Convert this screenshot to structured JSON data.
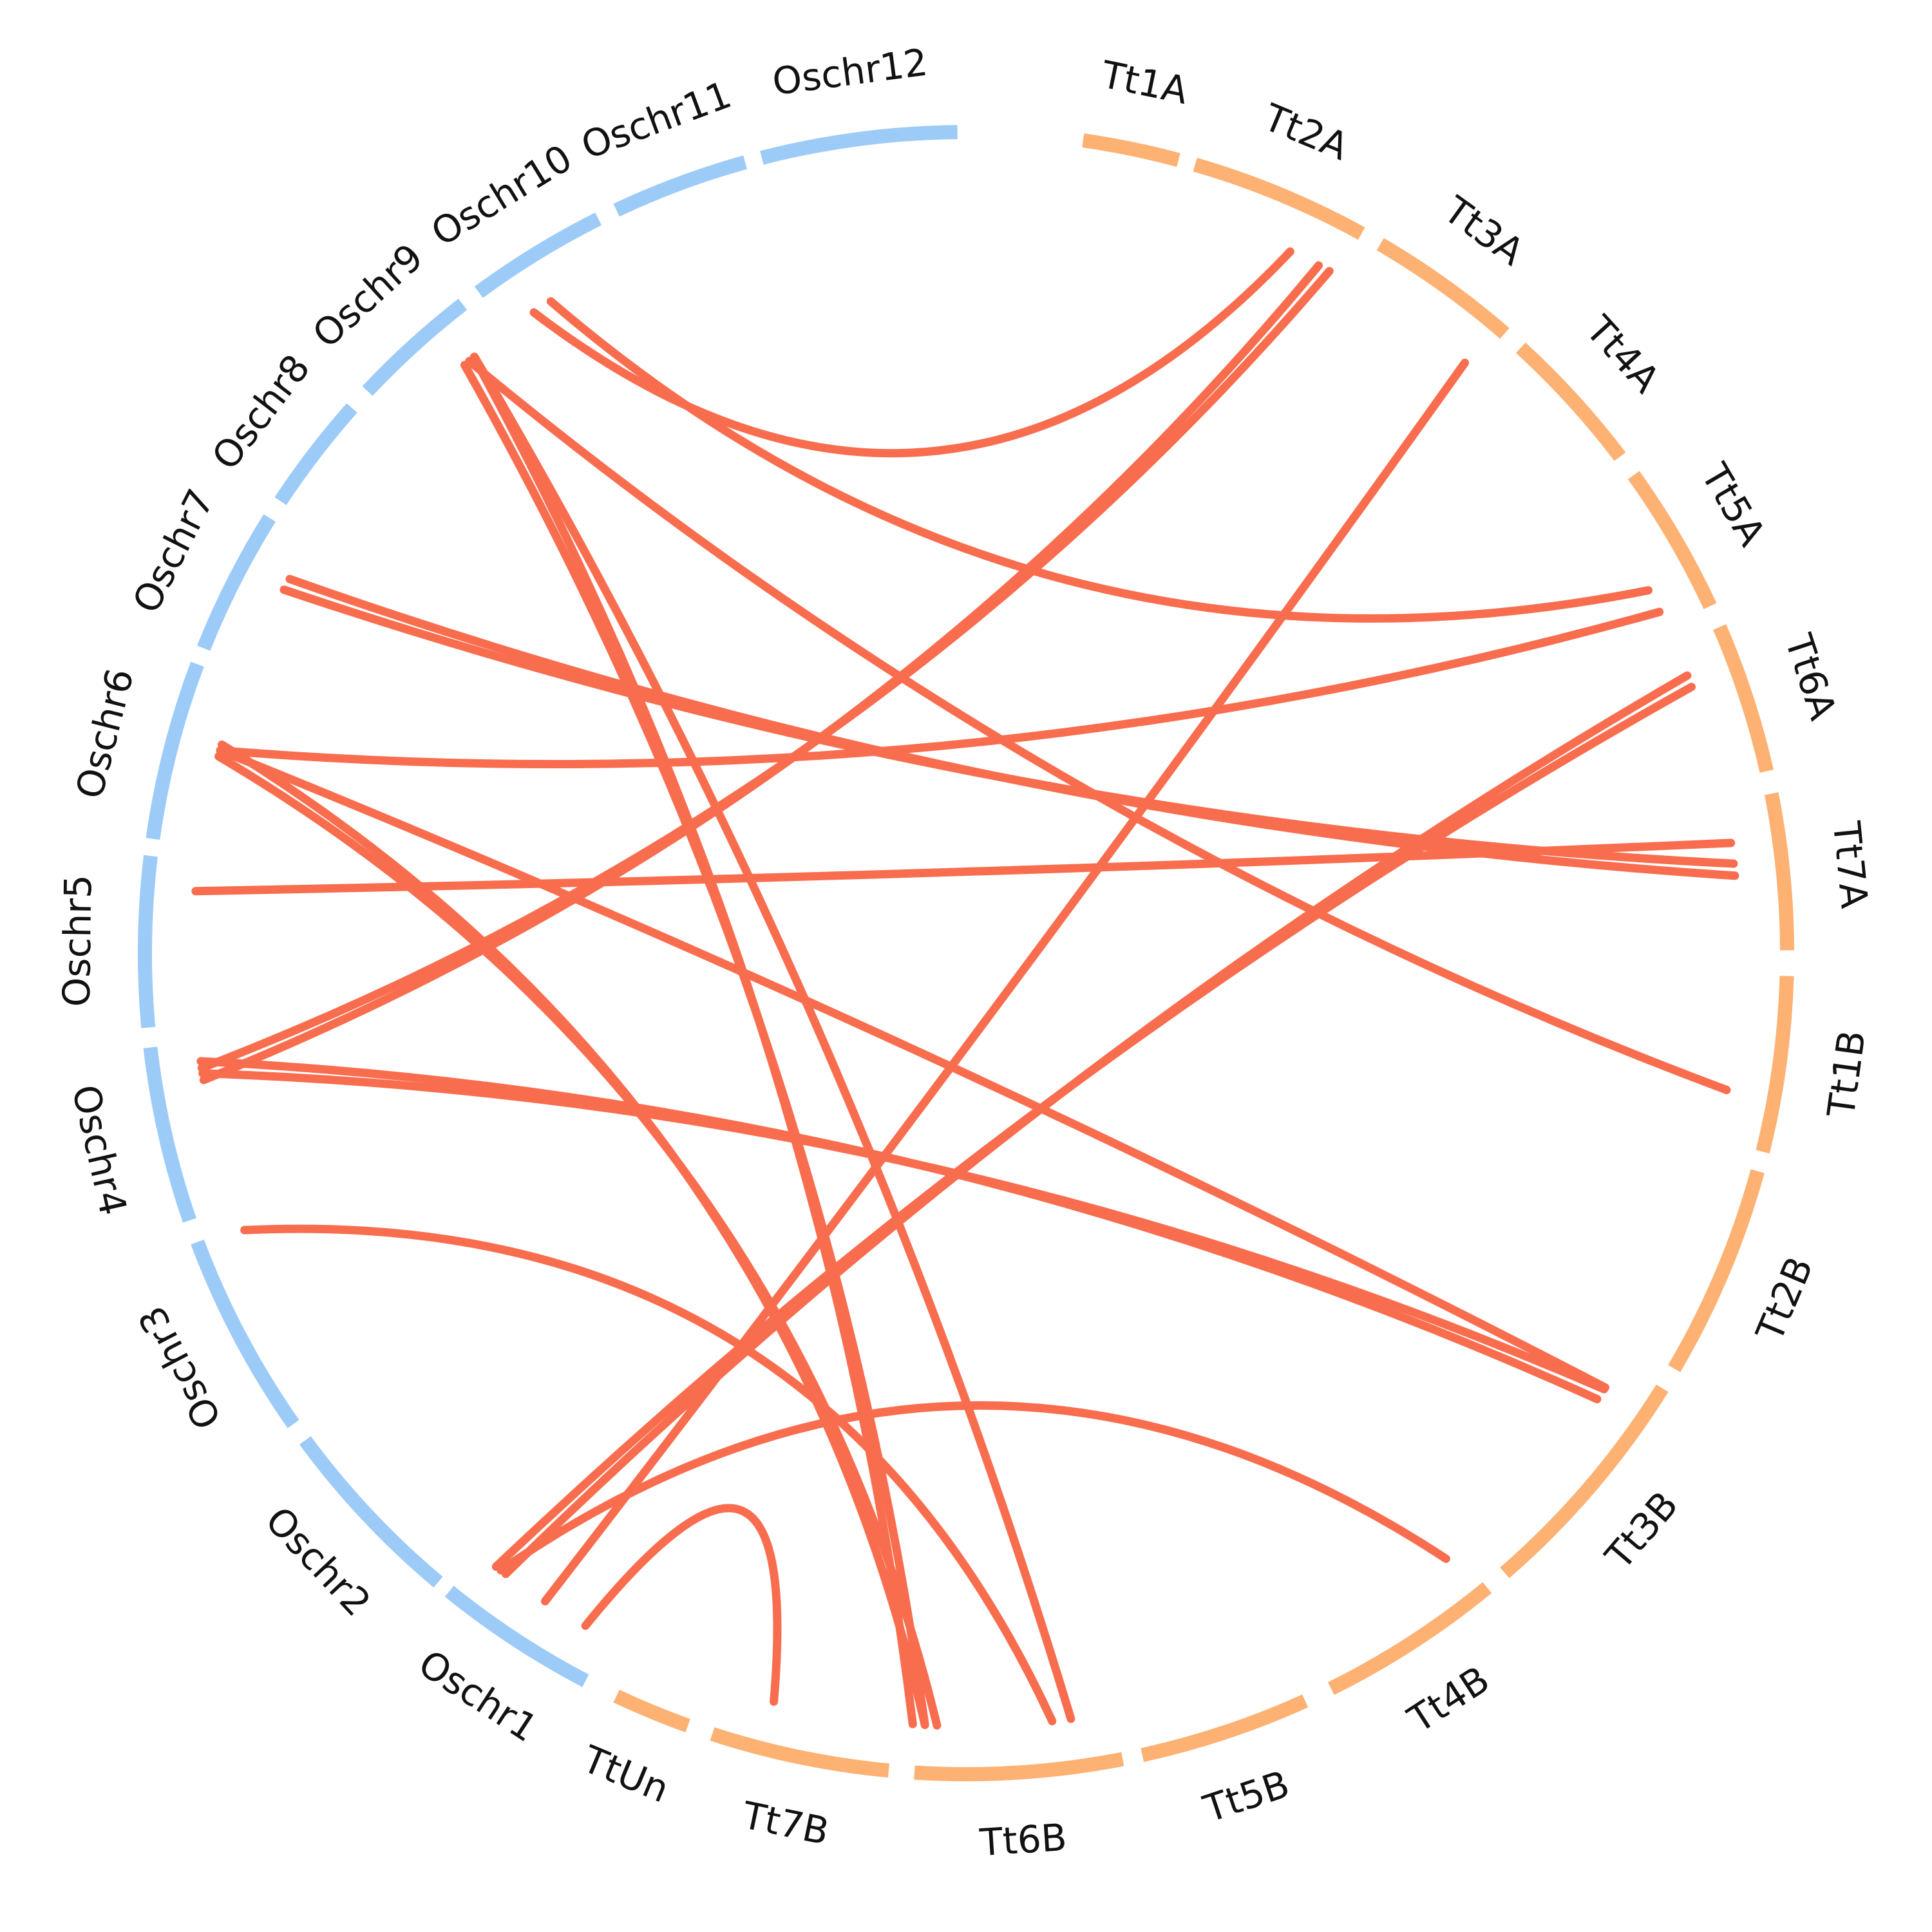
{
  "diagram": {
    "type": "circos-synteny",
    "colors": {
      "rice_segment": "#9DCBF7",
      "wheat_segment": "#FDB173",
      "link": "#F96D4F",
      "label": "#111111"
    },
    "segments": [
      {
        "id": "Tt1A",
        "label": "Tt1A",
        "group": "wheat"
      },
      {
        "id": "Tt2A",
        "label": "Tt2A",
        "group": "wheat"
      },
      {
        "id": "Tt3A",
        "label": "Tt3A",
        "group": "wheat"
      },
      {
        "id": "Tt4A",
        "label": "Tt4A",
        "group": "wheat"
      },
      {
        "id": "Tt5A",
        "label": "Tt5A",
        "group": "wheat"
      },
      {
        "id": "Tt6A",
        "label": "Tt6A",
        "group": "wheat"
      },
      {
        "id": "Tt7A",
        "label": "Tt7A",
        "group": "wheat"
      },
      {
        "id": "Tt1B",
        "label": "Tt1B",
        "group": "wheat"
      },
      {
        "id": "Tt2B",
        "label": "Tt2B",
        "group": "wheat"
      },
      {
        "id": "Tt3B",
        "label": "Tt3B",
        "group": "wheat"
      },
      {
        "id": "Tt4B",
        "label": "Tt4B",
        "group": "wheat"
      },
      {
        "id": "Tt5B",
        "label": "Tt5B",
        "group": "wheat"
      },
      {
        "id": "Tt6B",
        "label": "Tt6B",
        "group": "wheat"
      },
      {
        "id": "Tt7B",
        "label": "Tt7B",
        "group": "wheat"
      },
      {
        "id": "TtUn",
        "label": "TtUn",
        "group": "wheat"
      },
      {
        "id": "Oschr1",
        "label": "Oschr1",
        "group": "rice"
      },
      {
        "id": "Oschr2",
        "label": "Oschr2",
        "group": "rice"
      },
      {
        "id": "Oschr3",
        "label": "Oschr3",
        "group": "rice"
      },
      {
        "id": "Oschr4",
        "label": "Oschr4",
        "group": "rice"
      },
      {
        "id": "Oschr5",
        "label": "Oschr5",
        "group": "rice"
      },
      {
        "id": "Oschr6",
        "label": "Oschr6",
        "group": "rice"
      },
      {
        "id": "Oschr7",
        "label": "Oschr7",
        "group": "rice"
      },
      {
        "id": "Oschr8",
        "label": "Oschr8",
        "group": "rice"
      },
      {
        "id": "Oschr9",
        "label": "Oschr9",
        "group": "rice"
      },
      {
        "id": "Oschr10",
        "label": "Oschr10",
        "group": "rice"
      },
      {
        "id": "Oschr11",
        "label": "Oschr11",
        "group": "rice"
      },
      {
        "id": "Oschr12",
        "label": "Oschr12",
        "group": "rice"
      }
    ],
    "links": [
      {
        "from": "Oschr10",
        "to": "Tt2A",
        "weight": 1
      },
      {
        "from": "Oschr9",
        "to": "Tt6A",
        "weight": 1
      },
      {
        "from": "Oschr8",
        "to": "Tt5B",
        "weight": 1
      },
      {
        "from": "Oschr8",
        "to": "Tt6B",
        "weight": 2
      },
      {
        "from": "Oschr8",
        "to": "Tt1B",
        "weight": 1
      },
      {
        "from": "Oschr7",
        "to": "Tt7A",
        "weight": 2
      },
      {
        "from": "Oschr6",
        "to": "Tt6B",
        "weight": 2
      },
      {
        "from": "Oschr6",
        "to": "Tt2B",
        "weight": 1
      },
      {
        "from": "Oschr6",
        "to": "Tt5A",
        "weight": 1
      },
      {
        "from": "Oschr5",
        "to": "Tt7A",
        "weight": 1
      },
      {
        "from": "Oschr4",
        "to": "Tt2A",
        "weight": 2
      },
      {
        "from": "Oschr4",
        "to": "Tt2B",
        "weight": 2
      },
      {
        "from": "Oschr3",
        "to": "Tt5B",
        "weight": 1
      },
      {
        "from": "Oschr2",
        "to": "Tt6A",
        "weight": 2
      },
      {
        "from": "Oschr2",
        "to": "Tt3B",
        "weight": 1
      },
      {
        "from": "Oschr2",
        "to": "Tt7B",
        "weight": 1
      },
      {
        "from": "Oschr1",
        "to": "Tt3A",
        "weight": 1
      }
    ]
  }
}
